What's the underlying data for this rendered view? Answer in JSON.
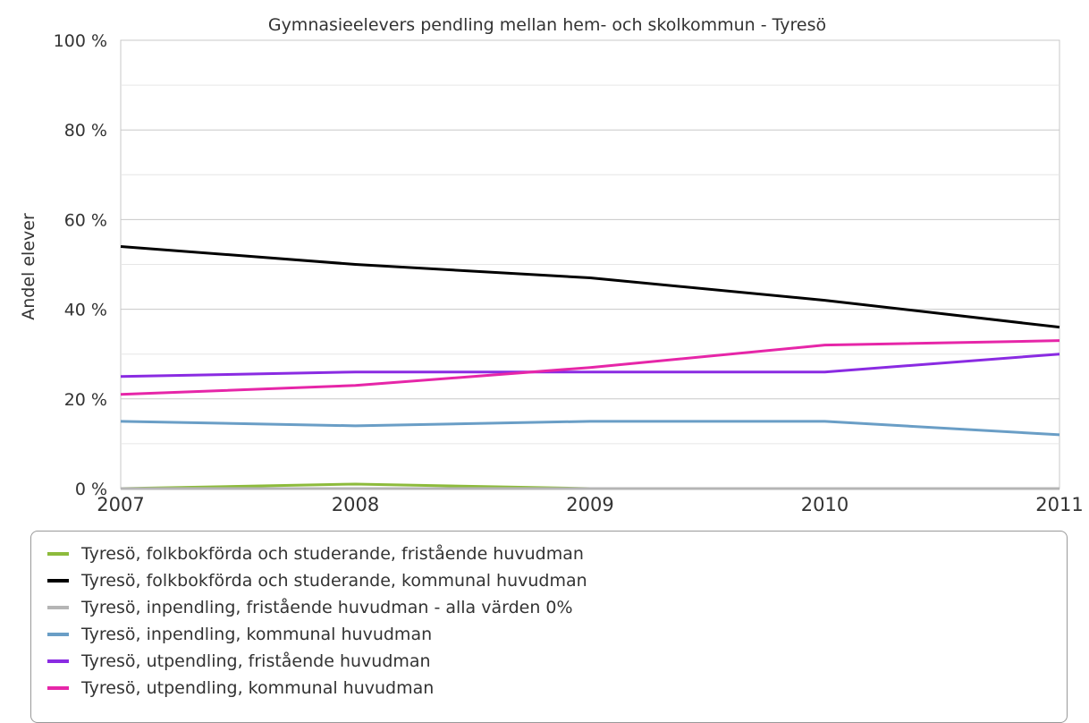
{
  "chart_data": {
    "type": "line",
    "title": "Gymnasieelevers pendling mellan hem- och skolkommun - Tyresö",
    "ylabel": "Andel elever",
    "xlabel": "",
    "x": [
      "2007",
      "2008",
      "2009",
      "2010",
      "2011"
    ],
    "ylim": [
      0,
      100
    ],
    "yticks": [
      "0 %",
      "20 %",
      "40 %",
      "60 %",
      "80 %",
      "100 %"
    ],
    "grid": true,
    "legend_position": "bottom",
    "series": [
      {
        "name": "Tyresö, folkbokförda och studerande, fristående huvudman",
        "color": "#8dbb3c",
        "values": [
          0,
          1,
          0,
          0,
          0
        ]
      },
      {
        "name": "Tyresö, folkbokförda och studerande, kommunal huvudman",
        "color": "#000000",
        "values": [
          54,
          50,
          47,
          42,
          36
        ]
      },
      {
        "name": "Tyresö, inpendling, fristående huvudman - alla värden 0%",
        "color": "#b5b5b5",
        "values": [
          0,
          0,
          0,
          0,
          0
        ]
      },
      {
        "name": "Tyresö, inpendling, kommunal huvudman",
        "color": "#6a9ec6",
        "values": [
          15,
          14,
          15,
          15,
          12
        ]
      },
      {
        "name": "Tyresö, utpendling, fristående huvudman",
        "color": "#8a2be2",
        "values": [
          25,
          26,
          26,
          26,
          30
        ]
      },
      {
        "name": "Tyresö, utpendling, kommunal huvudman",
        "color": "#e626a8",
        "values": [
          21,
          23,
          27,
          32,
          33
        ]
      }
    ]
  }
}
